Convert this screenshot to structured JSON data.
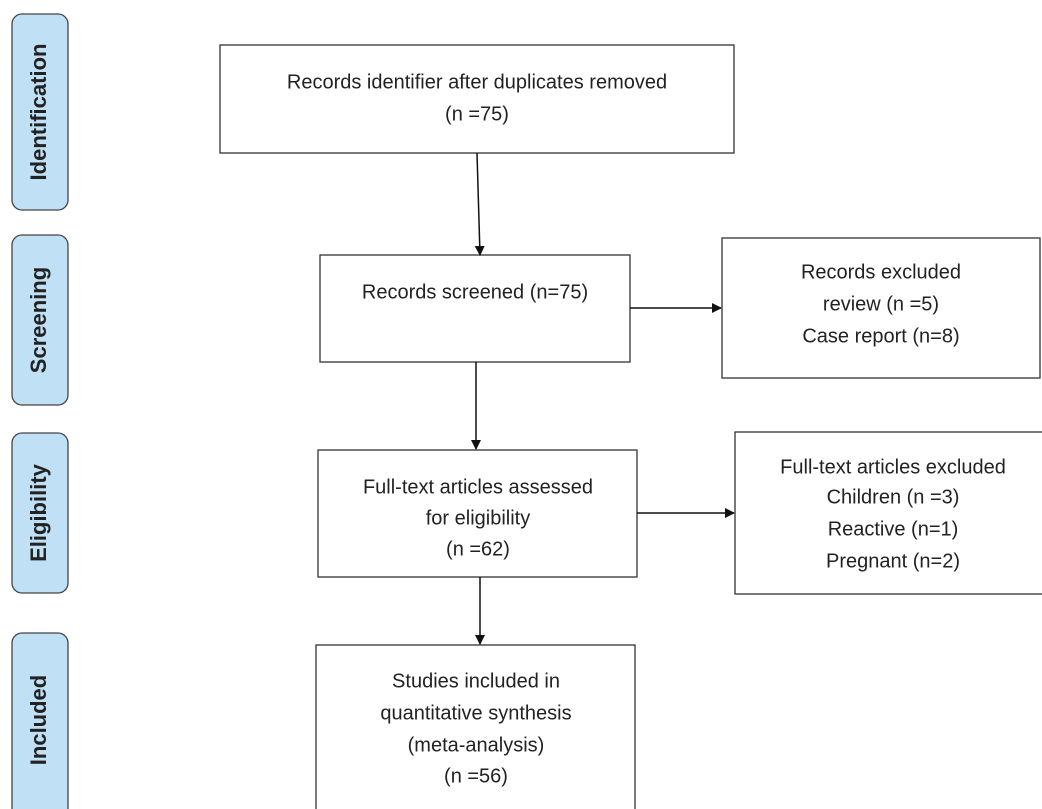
{
  "stages": [
    "Identification",
    "Screening",
    "Eligibility",
    "Included"
  ],
  "boxes": [
    {
      "lines": [
        "Records identifier after duplicates removed",
        "(n =75)"
      ]
    },
    {
      "lines": [
        "Records screened (n=75)"
      ]
    },
    {
      "lines": [
        "Records excluded",
        "review (n =5)",
        "Case report (n=8)"
      ]
    },
    {
      "lines": [
        "Full-text articles assessed",
        "for eligibility",
        "(n =62)"
      ]
    },
    {
      "lines": [
        "Full-text articles excluded",
        "Children (n =3)",
        "Reactive (n=1)",
        "Pregnant (n=2)"
      ]
    },
    {
      "lines": [
        "Studies included in",
        "quantitative synthesis",
        "(meta-analysis)",
        "(n =56)"
      ]
    }
  ]
}
